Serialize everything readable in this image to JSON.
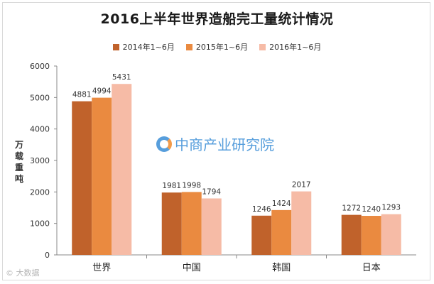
{
  "chart_data": {
    "type": "bar",
    "title": "2016上半年世界造船完工量统计情况",
    "ylabel": "万载重吨",
    "xlabel": "",
    "ylim": [
      0,
      6000
    ],
    "yticks": [
      0,
      1000,
      2000,
      3000,
      4000,
      5000,
      6000
    ],
    "categories": [
      "世界",
      "中国",
      "韩国",
      "日本"
    ],
    "series": [
      {
        "name": "2014年1~6月",
        "color": "#c0622b",
        "values": [
          4881,
          1981,
          1246,
          1272
        ]
      },
      {
        "name": "2015年1~6月",
        "color": "#ea8a40",
        "values": [
          4994,
          1998,
          1424,
          1240
        ]
      },
      {
        "name": "2016年1~6月",
        "color": "#f6bba6",
        "values": [
          5431,
          1794,
          2017,
          1293
        ]
      }
    ],
    "legend_position": "top"
  },
  "watermark": {
    "text": "中商产业研究院"
  },
  "corner_mark": {
    "text": "© 大数据"
  }
}
